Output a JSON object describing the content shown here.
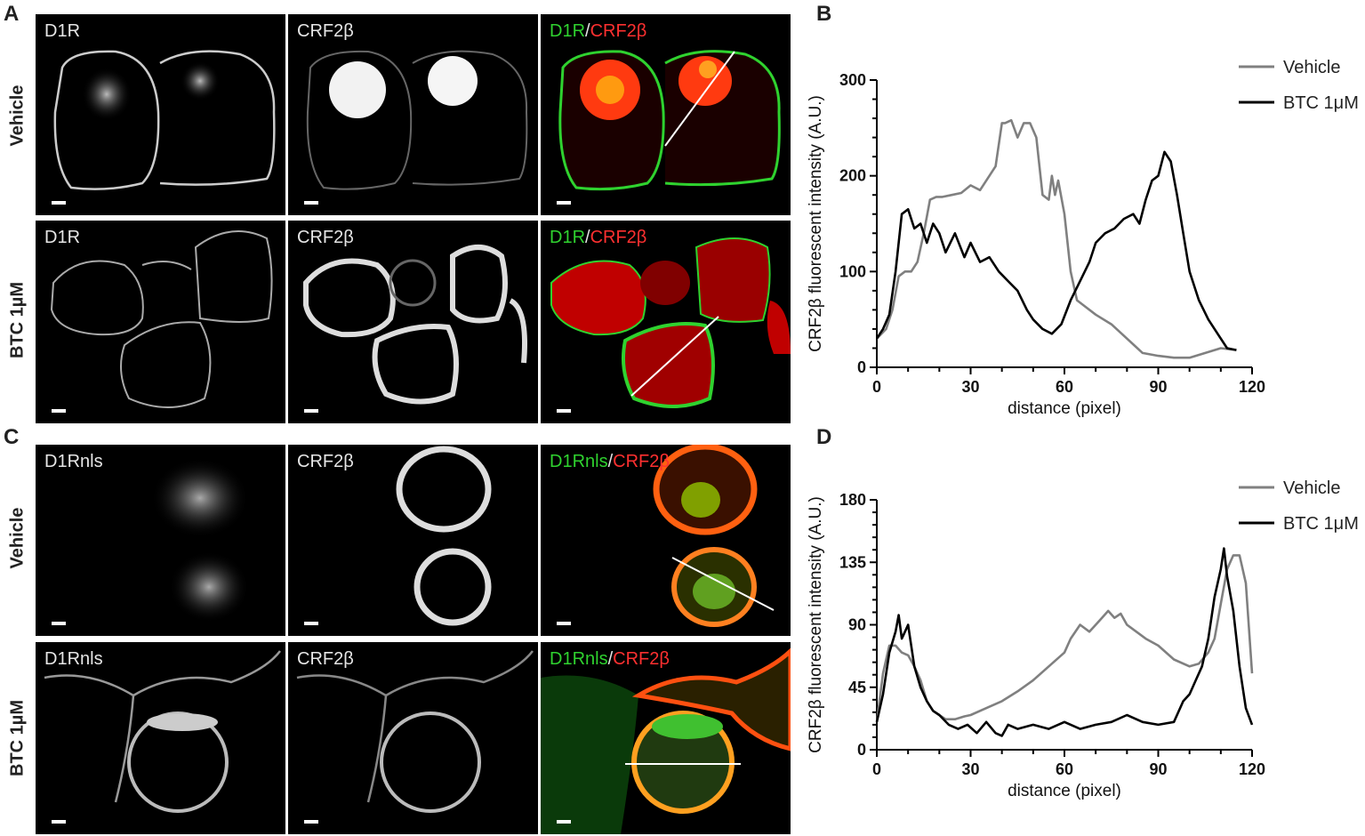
{
  "panel_letters": {
    "a": "A",
    "b": "B",
    "c": "C",
    "d": "D"
  },
  "row_labels": {
    "vehicle": "Vehicle",
    "btc": "BTC 1µM"
  },
  "micrographs": {
    "a_vehicle_d1r": "D1R",
    "a_vehicle_crf": "CRF2β",
    "a_vehicle_merge": {
      "green": "D1R",
      "sep": "/",
      "red": "CRF2β"
    },
    "a_btc_d1r": "D1R",
    "a_btc_crf": "CRF2β",
    "a_btc_merge": {
      "green": "D1R",
      "sep": "/",
      "red": "CRF2β"
    },
    "c_vehicle_d1rnls": "D1Rnls",
    "c_vehicle_crf": "CRF2β",
    "c_vehicle_merge": {
      "green": "D1Rnls",
      "sep": "/",
      "red": "CRF2β"
    },
    "c_btc_d1rnls": "D1Rnls",
    "c_btc_crf": "CRF2β",
    "c_btc_merge": {
      "green": "D1Rnls",
      "sep": "/",
      "red": "CRF2β"
    }
  },
  "colors": {
    "vehicle": "#808080",
    "btc": "#000000",
    "merge_green": "#2fd22f",
    "merge_red": "#ff3030"
  },
  "chart_data": [
    {
      "type": "line",
      "panel": "B",
      "xlabel": "distance (pixel)",
      "ylabel": "CRF2β fluorescent intensity (A.U.)",
      "xlim": [
        0,
        120
      ],
      "ylim": [
        0,
        300
      ],
      "xticks": [
        0,
        30,
        60,
        90,
        120
      ],
      "yticks": [
        0,
        100,
        200,
        300
      ],
      "legend_position": "top-right",
      "series": [
        {
          "name": "Vehicle",
          "x": [
            0,
            3,
            5,
            7,
            9,
            11,
            13,
            15,
            17,
            19,
            21,
            24,
            27,
            30,
            33,
            36,
            38,
            40,
            41,
            43,
            45,
            47,
            49,
            51,
            53,
            55,
            56,
            57,
            58,
            60,
            62,
            64,
            66,
            70,
            75,
            80,
            85,
            90,
            95,
            100,
            105,
            110,
            115
          ],
          "y": [
            30,
            40,
            60,
            95,
            100,
            100,
            110,
            140,
            175,
            178,
            178,
            180,
            182,
            190,
            185,
            200,
            210,
            255,
            255,
            258,
            240,
            255,
            255,
            240,
            180,
            175,
            200,
            180,
            195,
            160,
            100,
            70,
            65,
            55,
            45,
            30,
            15,
            12,
            10,
            10,
            15,
            20,
            18
          ]
        },
        {
          "name": "BTC 1μM",
          "x": [
            0,
            2,
            4,
            6,
            8,
            10,
            12,
            14,
            16,
            18,
            20,
            22,
            25,
            28,
            30,
            33,
            36,
            39,
            42,
            45,
            48,
            50,
            53,
            56,
            59,
            62,
            65,
            68,
            70,
            73,
            76,
            79,
            82,
            84,
            86,
            88,
            90,
            92,
            94,
            96,
            98,
            100,
            103,
            106,
            109,
            112,
            115
          ],
          "y": [
            30,
            40,
            55,
            100,
            160,
            165,
            145,
            150,
            130,
            150,
            140,
            120,
            140,
            115,
            130,
            110,
            115,
            100,
            90,
            80,
            60,
            50,
            40,
            35,
            45,
            70,
            90,
            110,
            130,
            140,
            145,
            155,
            160,
            150,
            175,
            195,
            200,
            225,
            215,
            180,
            140,
            100,
            70,
            50,
            35,
            20,
            18
          ]
        }
      ]
    },
    {
      "type": "line",
      "panel": "D",
      "xlabel": "distance (pixel)",
      "ylabel": "CRF2β fluorescent intensity (A.U.)",
      "xlim": [
        0,
        120
      ],
      "ylim": [
        0,
        180
      ],
      "xticks": [
        0,
        30,
        60,
        90,
        120
      ],
      "yticks": [
        0,
        45,
        90,
        135,
        180
      ],
      "legend_position": "top-right",
      "series": [
        {
          "name": "Vehicle",
          "x": [
            0,
            2,
            4,
            6,
            8,
            10,
            12,
            14,
            16,
            18,
            20,
            22,
            25,
            28,
            30,
            35,
            40,
            45,
            50,
            55,
            60,
            62,
            65,
            68,
            70,
            72,
            74,
            76,
            78,
            80,
            83,
            86,
            90,
            95,
            100,
            103,
            106,
            108,
            110,
            112,
            114,
            116,
            118,
            120
          ],
          "y": [
            20,
            55,
            75,
            75,
            70,
            68,
            60,
            50,
            35,
            28,
            25,
            22,
            22,
            24,
            25,
            30,
            35,
            42,
            50,
            60,
            70,
            80,
            90,
            85,
            90,
            95,
            100,
            95,
            98,
            90,
            85,
            80,
            75,
            65,
            60,
            62,
            70,
            80,
            105,
            130,
            140,
            140,
            120,
            55
          ]
        },
        {
          "name": "BTC 1μM",
          "x": [
            0,
            2,
            4,
            6,
            7,
            8,
            9,
            10,
            12,
            14,
            16,
            18,
            20,
            23,
            26,
            29,
            32,
            35,
            38,
            40,
            42,
            45,
            50,
            55,
            60,
            65,
            70,
            75,
            80,
            85,
            90,
            95,
            98,
            100,
            102,
            104,
            106,
            108,
            110,
            111,
            112,
            114,
            116,
            118,
            120
          ],
          "y": [
            20,
            40,
            70,
            85,
            97,
            80,
            85,
            90,
            60,
            45,
            35,
            28,
            25,
            18,
            15,
            18,
            12,
            20,
            12,
            10,
            18,
            15,
            18,
            15,
            20,
            15,
            18,
            20,
            25,
            20,
            18,
            20,
            35,
            40,
            50,
            60,
            80,
            110,
            130,
            145,
            125,
            100,
            60,
            30,
            18
          ]
        }
      ]
    }
  ]
}
